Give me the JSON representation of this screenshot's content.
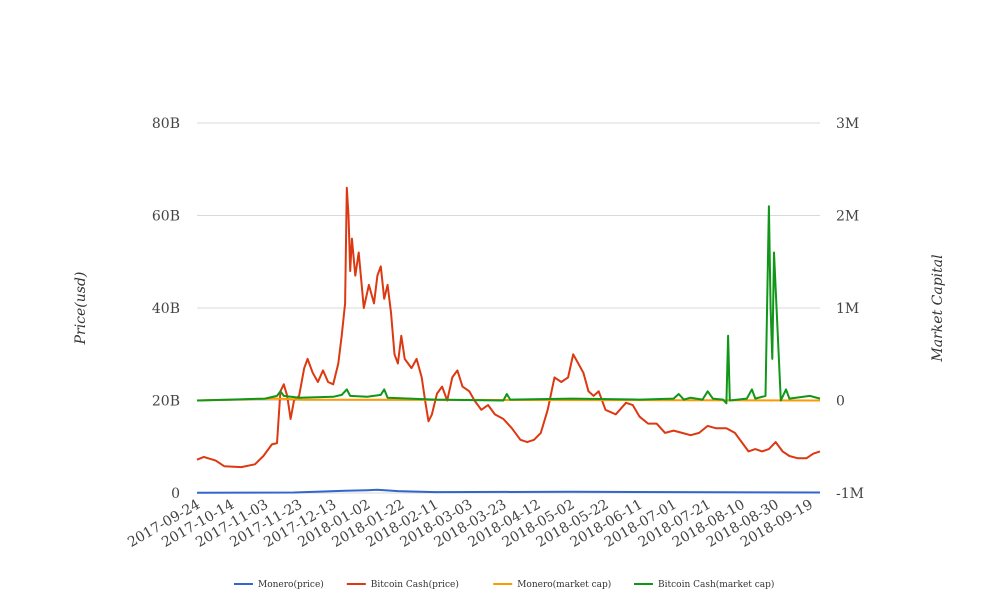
{
  "chart_data": {
    "type": "line",
    "title": "",
    "y_left_label": "Price(usd)",
    "y_right_label": "Market Capital",
    "y_left_ticks": [
      "0",
      "20B",
      "40B",
      "60B",
      "80B"
    ],
    "y_right_ticks": [
      "-1M",
      "0",
      "1M",
      "2M",
      "3M"
    ],
    "y_left_range": [
      0,
      80000000000
    ],
    "y_right_range": [
      -1000000,
      3000000
    ],
    "x_range": [
      "2017-09-24",
      "2018-09-25"
    ],
    "x_tick_labels": [
      "2017-09-24",
      "2017-10-14",
      "2017-11-03",
      "2017-11-23",
      "2017-12-13",
      "2018-01-02",
      "2018-01-22",
      "2018-02-11",
      "2018-03-03",
      "2018-03-23",
      "2018-04-12",
      "2018-05-02",
      "2018-05-22",
      "2018-06-11",
      "2018-07-01",
      "2018-07-21",
      "2018-08-10",
      "2018-08-30",
      "2018-09-19"
    ],
    "grid": true,
    "legend_position": "bottom",
    "series": [
      {
        "name": "Monero(price)",
        "axis": "left",
        "color": "#3366cc",
        "points": [
          [
            "2017-09-24",
            50000000.0
          ],
          [
            "2017-11-20",
            100000000.0
          ],
          [
            "2017-12-20",
            500000000.0
          ],
          [
            "2018-01-02",
            600000000.0
          ],
          [
            "2018-01-08",
            700000000.0
          ],
          [
            "2018-01-20",
            400000000.0
          ],
          [
            "2018-02-11",
            200000000.0
          ],
          [
            "2018-05-01",
            250000000.0
          ],
          [
            "2018-09-25",
            100000000.0
          ]
        ]
      },
      {
        "name": "Bitcoin Cash(price)",
        "axis": "left",
        "color": "#dc3912",
        "points": [
          [
            "2017-09-24",
            7200000000.0
          ],
          [
            "2017-09-28",
            7800000000.0
          ],
          [
            "2017-10-05",
            7000000000.0
          ],
          [
            "2017-10-10",
            5800000000.0
          ],
          [
            "2017-10-20",
            5600000000.0
          ],
          [
            "2017-10-28",
            6200000000.0
          ],
          [
            "2017-11-02",
            8000000000.0
          ],
          [
            "2017-11-07",
            10500000000.0
          ],
          [
            "2017-11-10",
            10800000000.0
          ],
          [
            "2017-11-12",
            22000000000.0
          ],
          [
            "2017-11-14",
            23500000000.0
          ],
          [
            "2017-11-16",
            21000000000.0
          ],
          [
            "2017-11-18",
            16000000000.0
          ],
          [
            "2017-11-20",
            20000000000.0
          ],
          [
            "2017-11-23",
            21000000000.0
          ],
          [
            "2017-11-26",
            27000000000.0
          ],
          [
            "2017-11-28",
            29000000000.0
          ],
          [
            "2017-12-01",
            26000000000.0
          ],
          [
            "2017-12-04",
            24000000000.0
          ],
          [
            "2017-12-07",
            26500000000.0
          ],
          [
            "2017-12-10",
            24000000000.0
          ],
          [
            "2017-12-13",
            23500000000.0
          ],
          [
            "2017-12-16",
            28000000000.0
          ],
          [
            "2017-12-18",
            34000000000.0
          ],
          [
            "2017-12-20",
            41000000000.0
          ],
          [
            "2017-12-21",
            66000000000.0
          ],
          [
            "2017-12-22",
            60000000000.0
          ],
          [
            "2017-12-23",
            48000000000.0
          ],
          [
            "2017-12-24",
            55000000000.0
          ],
          [
            "2017-12-26",
            47000000000.0
          ],
          [
            "2017-12-28",
            52000000000.0
          ],
          [
            "2017-12-31",
            40000000000.0
          ],
          [
            "2018-01-03",
            45000000000.0
          ],
          [
            "2018-01-06",
            41000000000.0
          ],
          [
            "2018-01-08",
            47000000000.0
          ],
          [
            "2018-01-10",
            49000000000.0
          ],
          [
            "2018-01-12",
            42000000000.0
          ],
          [
            "2018-01-14",
            45000000000.0
          ],
          [
            "2018-01-16",
            39000000000.0
          ],
          [
            "2018-01-18",
            30000000000.0
          ],
          [
            "2018-01-20",
            28000000000.0
          ],
          [
            "2018-01-22",
            34000000000.0
          ],
          [
            "2018-01-24",
            29000000000.0
          ],
          [
            "2018-01-28",
            27000000000.0
          ],
          [
            "2018-01-31",
            29000000000.0
          ],
          [
            "2018-02-03",
            25000000000.0
          ],
          [
            "2018-02-05",
            20000000000.0
          ],
          [
            "2018-02-07",
            15500000000.0
          ],
          [
            "2018-02-09",
            17000000000.0
          ],
          [
            "2018-02-12",
            21500000000.0
          ],
          [
            "2018-02-15",
            23000000000.0
          ],
          [
            "2018-02-18",
            20000000000.0
          ],
          [
            "2018-02-21",
            25000000000.0
          ],
          [
            "2018-02-24",
            26500000000.0
          ],
          [
            "2018-02-27",
            23000000000.0
          ],
          [
            "2018-03-03",
            22000000000.0
          ],
          [
            "2018-03-06",
            20000000000.0
          ],
          [
            "2018-03-10",
            18000000000.0
          ],
          [
            "2018-03-14",
            19000000000.0
          ],
          [
            "2018-03-18",
            17000000000.0
          ],
          [
            "2018-03-23",
            16000000000.0
          ],
          [
            "2018-03-28",
            14000000000.0
          ],
          [
            "2018-04-02",
            11500000000.0
          ],
          [
            "2018-04-06",
            11000000000.0
          ],
          [
            "2018-04-10",
            11500000000.0
          ],
          [
            "2018-04-14",
            13000000000.0
          ],
          [
            "2018-04-18",
            18000000000.0
          ],
          [
            "2018-04-22",
            25000000000.0
          ],
          [
            "2018-04-26",
            24000000000.0
          ],
          [
            "2018-04-30",
            25000000000.0
          ],
          [
            "2018-05-03",
            30000000000.0
          ],
          [
            "2018-05-06",
            28000000000.0
          ],
          [
            "2018-05-09",
            26000000000.0
          ],
          [
            "2018-05-12",
            22000000000.0
          ],
          [
            "2018-05-15",
            21000000000.0
          ],
          [
            "2018-05-18",
            22000000000.0
          ],
          [
            "2018-05-22",
            18000000000.0
          ],
          [
            "2018-05-28",
            17000000000.0
          ],
          [
            "2018-06-03",
            19500000000.0
          ],
          [
            "2018-06-07",
            19000000000.0
          ],
          [
            "2018-06-11",
            16500000000.0
          ],
          [
            "2018-06-16",
            15000000000.0
          ],
          [
            "2018-06-21",
            15000000000.0
          ],
          [
            "2018-06-26",
            13000000000.0
          ],
          [
            "2018-07-01",
            13500000000.0
          ],
          [
            "2018-07-06",
            13000000000.0
          ],
          [
            "2018-07-11",
            12500000000.0
          ],
          [
            "2018-07-16",
            13000000000.0
          ],
          [
            "2018-07-21",
            14500000000.0
          ],
          [
            "2018-07-26",
            14000000000.0
          ],
          [
            "2018-08-01",
            14000000000.0
          ],
          [
            "2018-08-06",
            13000000000.0
          ],
          [
            "2018-08-10",
            11000000000.0
          ],
          [
            "2018-08-14",
            9000000000.0
          ],
          [
            "2018-08-18",
            9500000000.0
          ],
          [
            "2018-08-22",
            9000000000.0
          ],
          [
            "2018-08-26",
            9500000000.0
          ],
          [
            "2018-08-30",
            11000000000.0
          ],
          [
            "2018-09-03",
            9000000000.0
          ],
          [
            "2018-09-07",
            8000000000.0
          ],
          [
            "2018-09-12",
            7500000000.0
          ],
          [
            "2018-09-17",
            7500000000.0
          ],
          [
            "2018-09-21",
            8500000000.0
          ],
          [
            "2018-09-25",
            9000000000.0
          ]
        ]
      },
      {
        "name": "Monero(market cap)",
        "axis": "right",
        "color": "#ff9900",
        "points": [
          [
            "2017-09-24",
            0
          ],
          [
            "2017-11-10",
            20000.0
          ],
          [
            "2017-11-25",
            10000.0
          ],
          [
            "2018-09-25",
            0
          ]
        ]
      },
      {
        "name": "Bitcoin Cash(market cap)",
        "axis": "right",
        "color": "#109618",
        "points": [
          [
            "2017-09-24",
            0
          ],
          [
            "2017-10-14",
            10000.0
          ],
          [
            "2017-11-03",
            20000.0
          ],
          [
            "2017-11-10",
            50000.0
          ],
          [
            "2017-11-12",
            100000.0
          ],
          [
            "2017-11-14",
            50000.0
          ],
          [
            "2017-11-23",
            30000.0
          ],
          [
            "2017-12-13",
            40000.0
          ],
          [
            "2017-12-18",
            60000.0
          ],
          [
            "2017-12-21",
            120000.0
          ],
          [
            "2017-12-23",
            50000.0
          ],
          [
            "2018-01-02",
            40000.0
          ],
          [
            "2018-01-10",
            60000.0
          ],
          [
            "2018-01-12",
            120000.0
          ],
          [
            "2018-01-14",
            30000.0
          ],
          [
            "2018-02-11",
            10000.0
          ],
          [
            "2018-03-23",
            0.0
          ],
          [
            "2018-03-25",
            70000.0
          ],
          [
            "2018-03-27",
            10000.0
          ],
          [
            "2018-05-02",
            20000.0
          ],
          [
            "2018-06-11",
            10000.0
          ],
          [
            "2018-07-01",
            20000.0
          ],
          [
            "2018-07-04",
            70000.0
          ],
          [
            "2018-07-07",
            10000.0
          ],
          [
            "2018-07-11",
            30000.0
          ],
          [
            "2018-07-18",
            10000.0
          ],
          [
            "2018-07-21",
            100000.0
          ],
          [
            "2018-07-24",
            20000.0
          ],
          [
            "2018-07-30",
            10000.0
          ],
          [
            "2018-08-01",
            -30000.0
          ],
          [
            "2018-08-02",
            700000.0
          ],
          [
            "2018-08-03",
            0.0
          ],
          [
            "2018-08-13",
            20000.0
          ],
          [
            "2018-08-16",
            120000.0
          ],
          [
            "2018-08-18",
            20000.0
          ],
          [
            "2018-08-24",
            50000.0
          ],
          [
            "2018-08-26",
            2100000.0
          ],
          [
            "2018-08-27",
            1000000.0
          ],
          [
            "2018-08-28",
            450000.0
          ],
          [
            "2018-08-29",
            1600000.0
          ],
          [
            "2018-08-31",
            800000.0
          ],
          [
            "2018-09-02",
            0.0
          ],
          [
            "2018-09-05",
            120000.0
          ],
          [
            "2018-09-07",
            20000.0
          ],
          [
            "2018-09-19",
            50000.0
          ],
          [
            "2018-09-25",
            20000.0
          ]
        ]
      }
    ]
  }
}
